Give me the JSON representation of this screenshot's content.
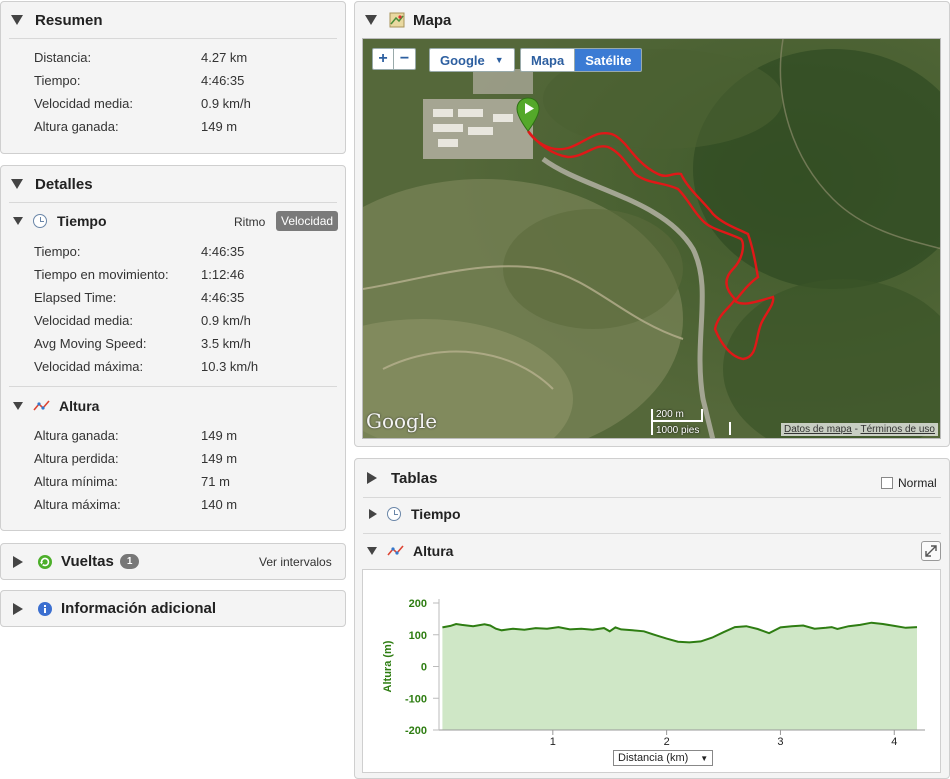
{
  "resumen": {
    "title": "Resumen",
    "rows": [
      {
        "label": "Distancia:",
        "value": "4.27 km"
      },
      {
        "label": "Tiempo:",
        "value": "4:46:35"
      },
      {
        "label": "Velocidad media:",
        "value": "0.9 km/h"
      },
      {
        "label": "Altura ganada:",
        "value": "149 m"
      }
    ]
  },
  "detalles": {
    "title": "Detalles",
    "tiempo": {
      "title": "Tiempo",
      "btn_ritmo": "Ritmo",
      "btn_velocidad": "Velocidad",
      "rows": [
        {
          "label": "Tiempo:",
          "value": "4:46:35"
        },
        {
          "label": "Tiempo en movimiento:",
          "value": "1:12:46"
        },
        {
          "label": "Elapsed Time:",
          "value": "4:46:35"
        },
        {
          "label": "Velocidad media:",
          "value": "0.9 km/h"
        },
        {
          "label": "Avg Moving Speed:",
          "value": "3.5 km/h"
        },
        {
          "label": "Velocidad máxima:",
          "value": "10.3 km/h"
        }
      ]
    },
    "altura": {
      "title": "Altura",
      "rows": [
        {
          "label": "Altura ganada:",
          "value": "149 m"
        },
        {
          "label": "Altura perdida:",
          "value": "149 m"
        },
        {
          "label": "Altura mínima:",
          "value": "71 m"
        },
        {
          "label": "Altura máxima:",
          "value": "140 m"
        }
      ]
    }
  },
  "vueltas": {
    "title": "Vueltas",
    "count": "1",
    "link": "Ver intervalos"
  },
  "info": {
    "title": "Información adicional"
  },
  "mapa": {
    "title": "Mapa",
    "zoom_in": "+",
    "zoom_out": "−",
    "provider": "Google",
    "type_map": "Mapa",
    "type_sat": "Satélite",
    "logo": "Google",
    "scale_m": "200 m",
    "scale_ft": "1000 pies",
    "attrib_data": "Datos de mapa",
    "attrib_sep": " - ",
    "attrib_terms": "Términos de uso"
  },
  "tablas": {
    "title": "Tablas",
    "normal_label": "Normal",
    "tiempo": "Tiempo",
    "altura": "Altura",
    "xselect": "Distancia (km)"
  },
  "colors": {
    "line": "#2e7d12",
    "fill": "#cfe7c6",
    "accent": "#3b7bd4"
  },
  "chart_data": {
    "type": "area",
    "ylabel": "Altura (m)",
    "xlabel": "Distancia (km)",
    "ylim": [
      -200,
      200
    ],
    "xlim": [
      0,
      4.27
    ],
    "yticks": [
      200,
      100,
      0,
      -100,
      -200
    ],
    "xticks": [
      1,
      2,
      3,
      4
    ],
    "x": [
      0.03,
      0.1,
      0.15,
      0.2,
      0.3,
      0.4,
      0.45,
      0.5,
      0.55,
      0.65,
      0.75,
      0.85,
      0.95,
      1.05,
      1.15,
      1.25,
      1.35,
      1.45,
      1.5,
      1.55,
      1.6,
      1.7,
      1.8,
      1.9,
      2.0,
      2.1,
      2.2,
      2.3,
      2.4,
      2.5,
      2.6,
      2.7,
      2.8,
      2.9,
      3.0,
      3.1,
      3.2,
      3.3,
      3.4,
      3.45,
      3.5,
      3.6,
      3.7,
      3.8,
      3.9,
      4.0,
      4.1,
      4.2
    ],
    "y": [
      123,
      128,
      134,
      131,
      127,
      133,
      129,
      119,
      114,
      119,
      116,
      121,
      119,
      124,
      117,
      119,
      116,
      121,
      111,
      123,
      117,
      114,
      111,
      99,
      88,
      78,
      76,
      79,
      91,
      108,
      124,
      127,
      118,
      105,
      123,
      127,
      129,
      119,
      122,
      124,
      118,
      127,
      131,
      138,
      134,
      128,
      122,
      124
    ]
  }
}
